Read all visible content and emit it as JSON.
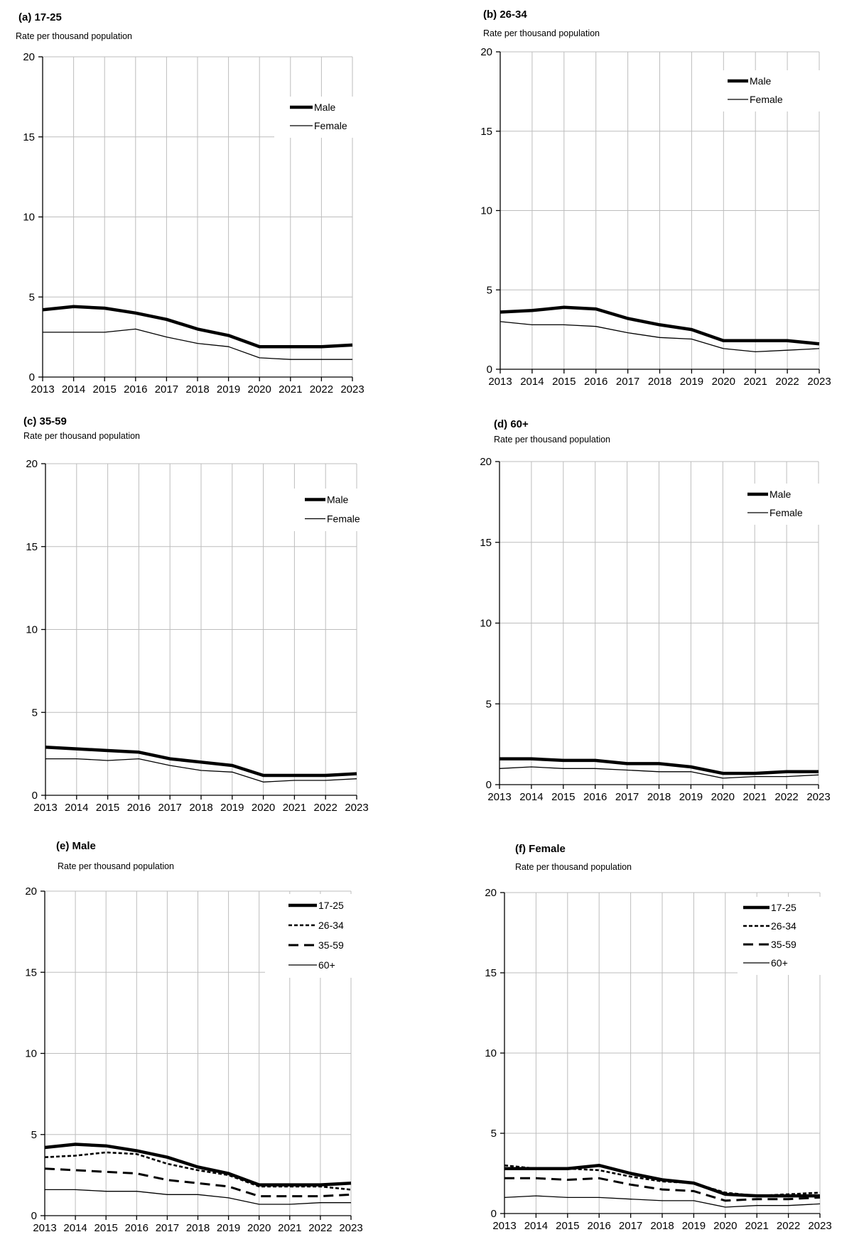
{
  "chart_data": [
    {
      "id": "a",
      "type": "line",
      "title": "(a) 17-25",
      "ylabel": "Rate per thousand population",
      "xlabel": "",
      "x": [
        "2013",
        "2014",
        "2015",
        "2016",
        "2017",
        "2018",
        "2019",
        "2020",
        "2021",
        "2022",
        "2023"
      ],
      "yticks": [
        0,
        5,
        10,
        15,
        20
      ],
      "ylim": [
        0,
        20
      ],
      "grid": true,
      "legend": "top-right",
      "series": [
        {
          "name": "Male",
          "style": "thick",
          "values": [
            4.2,
            4.4,
            4.3,
            4.0,
            3.6,
            3.0,
            2.6,
            1.9,
            1.9,
            1.9,
            2.0
          ]
        },
        {
          "name": "Female",
          "style": "thin",
          "values": [
            2.8,
            2.8,
            2.8,
            3.0,
            2.5,
            2.1,
            1.9,
            1.2,
            1.1,
            1.1,
            1.1
          ]
        }
      ]
    },
    {
      "id": "b",
      "type": "line",
      "title": "(b) 26-34",
      "ylabel": "Rate per thousand population",
      "xlabel": "",
      "x": [
        "2013",
        "2014",
        "2015",
        "2016",
        "2017",
        "2018",
        "2019",
        "2020",
        "2021",
        "2022",
        "2023"
      ],
      "yticks": [
        0,
        5,
        10,
        15,
        20
      ],
      "ylim": [
        0,
        20
      ],
      "grid": true,
      "legend": "top-right",
      "series": [
        {
          "name": "Male",
          "style": "thick",
          "values": [
            3.6,
            3.7,
            3.9,
            3.8,
            3.2,
            2.8,
            2.5,
            1.8,
            1.8,
            1.8,
            1.6
          ]
        },
        {
          "name": "Female",
          "style": "thin",
          "values": [
            3.0,
            2.8,
            2.8,
            2.7,
            2.3,
            2.0,
            1.9,
            1.3,
            1.1,
            1.2,
            1.3
          ]
        }
      ]
    },
    {
      "id": "c",
      "type": "line",
      "title": "(c) 35-59",
      "ylabel": "Rate per thousand population",
      "xlabel": "",
      "x": [
        "2013",
        "2014",
        "2015",
        "2016",
        "2017",
        "2018",
        "2019",
        "2020",
        "2021",
        "2022",
        "2023"
      ],
      "yticks": [
        0,
        5,
        10,
        15,
        20
      ],
      "ylim": [
        0,
        20
      ],
      "grid": true,
      "legend": "top-right",
      "series": [
        {
          "name": "Male",
          "style": "thick",
          "values": [
            2.9,
            2.8,
            2.7,
            2.6,
            2.2,
            2.0,
            1.8,
            1.2,
            1.2,
            1.2,
            1.3
          ]
        },
        {
          "name": "Female",
          "style": "thin",
          "values": [
            2.2,
            2.2,
            2.1,
            2.2,
            1.8,
            1.5,
            1.4,
            0.8,
            0.9,
            0.9,
            1.0
          ]
        }
      ]
    },
    {
      "id": "d",
      "type": "line",
      "title": "(d) 60+",
      "ylabel": "Rate per thousand population",
      "xlabel": "",
      "x": [
        "2013",
        "2014",
        "2015",
        "2016",
        "2017",
        "2018",
        "2019",
        "2020",
        "2021",
        "2022",
        "2023"
      ],
      "yticks": [
        0,
        5,
        10,
        15,
        20
      ],
      "ylim": [
        0,
        20
      ],
      "grid": true,
      "legend": "top-right",
      "series": [
        {
          "name": "Male",
          "style": "thick",
          "values": [
            1.6,
            1.6,
            1.5,
            1.5,
            1.3,
            1.3,
            1.1,
            0.7,
            0.7,
            0.8,
            0.8
          ]
        },
        {
          "name": "Female",
          "style": "thin",
          "values": [
            1.0,
            1.1,
            1.0,
            1.0,
            0.9,
            0.8,
            0.8,
            0.4,
            0.5,
            0.5,
            0.6
          ]
        }
      ]
    },
    {
      "id": "e",
      "type": "line",
      "title": "(e) Male",
      "ylabel": "Rate per thousand population",
      "xlabel": "",
      "x": [
        "2013",
        "2014",
        "2015",
        "2016",
        "2017",
        "2018",
        "2019",
        "2020",
        "2021",
        "2022",
        "2023"
      ],
      "yticks": [
        0,
        5,
        10,
        15,
        20
      ],
      "ylim": [
        0,
        20
      ],
      "grid": true,
      "legend": "top-right",
      "series": [
        {
          "name": "17-25",
          "style": "thick",
          "values": [
            4.2,
            4.4,
            4.3,
            4.0,
            3.6,
            3.0,
            2.6,
            1.9,
            1.9,
            1.9,
            2.0
          ]
        },
        {
          "name": "26-34",
          "style": "dotted",
          "values": [
            3.6,
            3.7,
            3.9,
            3.8,
            3.2,
            2.8,
            2.5,
            1.8,
            1.8,
            1.8,
            1.6
          ]
        },
        {
          "name": "35-59",
          "style": "dashed",
          "values": [
            2.9,
            2.8,
            2.7,
            2.6,
            2.2,
            2.0,
            1.8,
            1.2,
            1.2,
            1.2,
            1.3
          ]
        },
        {
          "name": "60+",
          "style": "thin",
          "values": [
            1.6,
            1.6,
            1.5,
            1.5,
            1.3,
            1.3,
            1.1,
            0.7,
            0.7,
            0.8,
            0.8
          ]
        }
      ]
    },
    {
      "id": "f",
      "type": "line",
      "title": "(f) Female",
      "ylabel": "Rate per thousand population",
      "xlabel": "",
      "x": [
        "2013",
        "2014",
        "2015",
        "2016",
        "2017",
        "2018",
        "2019",
        "2020",
        "2021",
        "2022",
        "2023"
      ],
      "yticks": [
        0,
        5,
        10,
        15,
        20
      ],
      "ylim": [
        0,
        20
      ],
      "grid": true,
      "legend": "top-right",
      "series": [
        {
          "name": "17-25",
          "style": "thick",
          "values": [
            2.8,
            2.8,
            2.8,
            3.0,
            2.5,
            2.1,
            1.9,
            1.2,
            1.1,
            1.1,
            1.1
          ]
        },
        {
          "name": "26-34",
          "style": "dotted",
          "values": [
            3.0,
            2.8,
            2.8,
            2.7,
            2.3,
            2.0,
            1.9,
            1.3,
            1.1,
            1.2,
            1.3
          ]
        },
        {
          "name": "35-59",
          "style": "dashed",
          "values": [
            2.2,
            2.2,
            2.1,
            2.2,
            1.8,
            1.5,
            1.4,
            0.8,
            0.9,
            0.9,
            1.0
          ]
        },
        {
          "name": "60+",
          "style": "thin",
          "values": [
            1.0,
            1.1,
            1.0,
            1.0,
            0.9,
            0.8,
            0.8,
            0.4,
            0.5,
            0.5,
            0.6
          ]
        }
      ]
    }
  ],
  "colors": {
    "line": "#000000",
    "grid": "#bdbdbd",
    "background": "#ffffff"
  }
}
